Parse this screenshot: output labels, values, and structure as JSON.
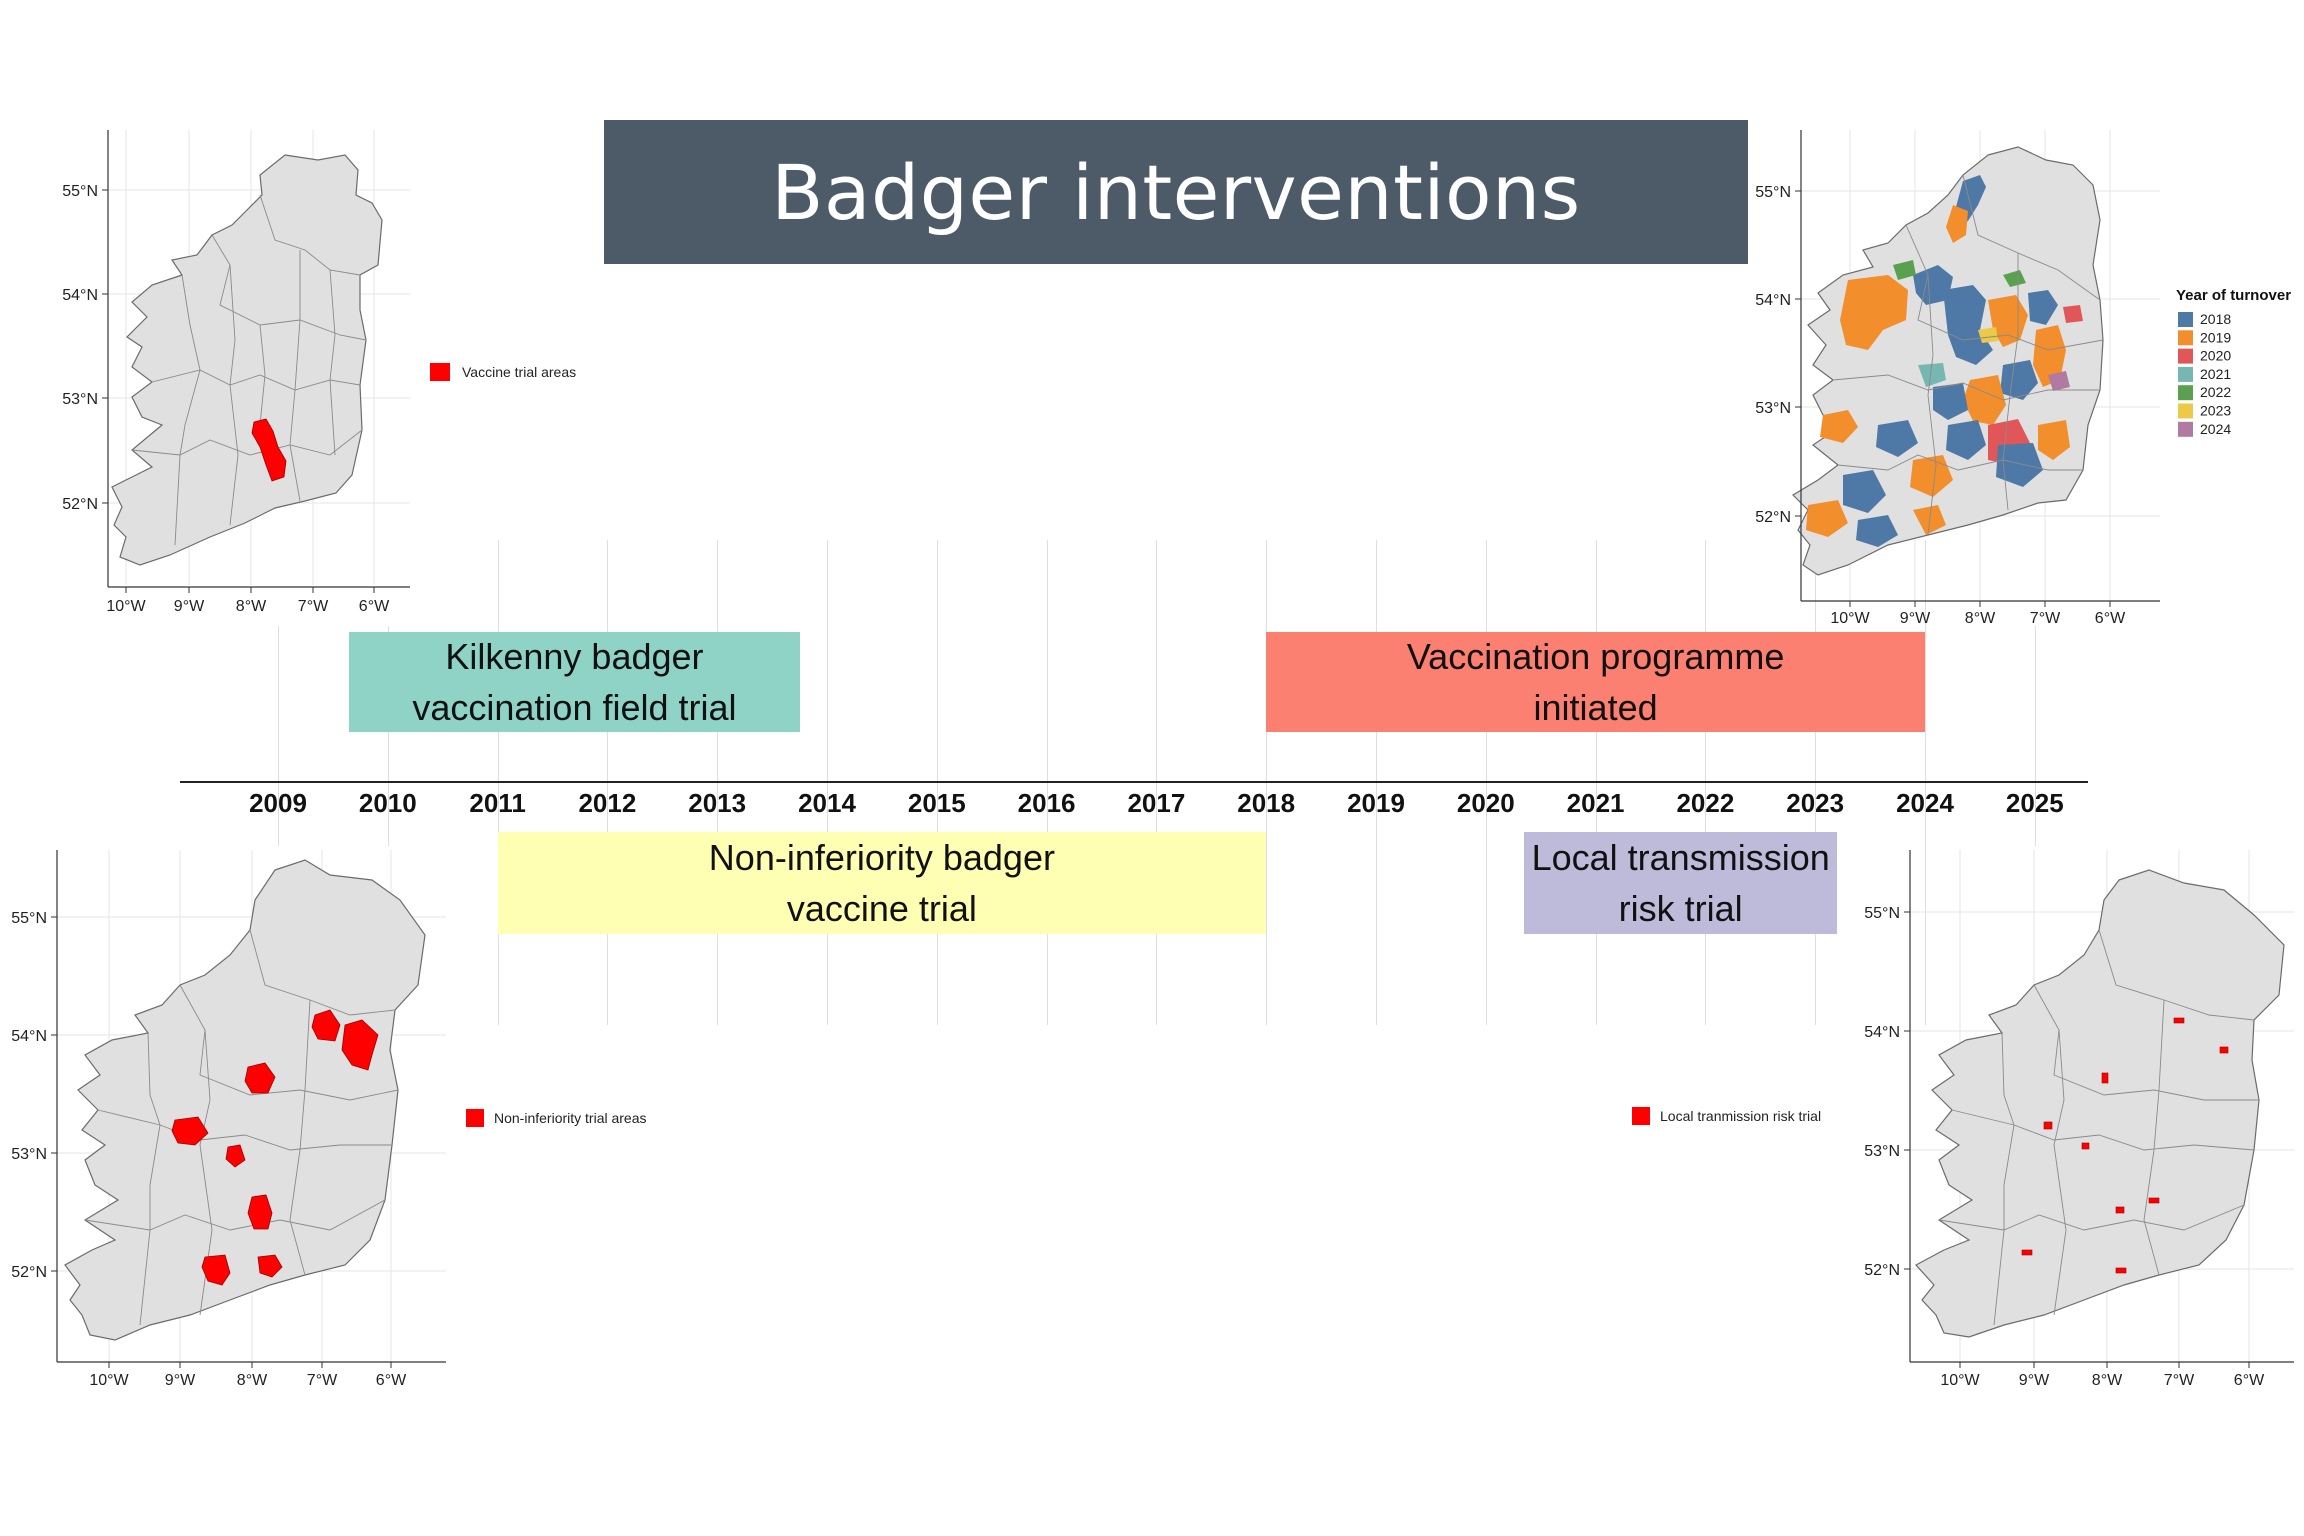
{
  "title": "Badger interventions",
  "timeline": {
    "years": [
      "2009",
      "2010",
      "2011",
      "2012",
      "2013",
      "2014",
      "2015",
      "2016",
      "2017",
      "2018",
      "2019",
      "2020",
      "2021",
      "2022",
      "2023",
      "2024",
      "2025"
    ],
    "events": [
      {
        "id": "kilkenny",
        "lines": [
          "Kilkenny badger",
          "vaccination field trial"
        ],
        "start": 2009.65,
        "end": 2013.75,
        "color": "#8fd3c7",
        "position": "above"
      },
      {
        "id": "programme",
        "lines": [
          "Vaccination programme",
          "initiated"
        ],
        "start": 2018.0,
        "end": 2024.0,
        "color": "#fb8072",
        "position": "above"
      },
      {
        "id": "noninferiority",
        "lines": [
          "Non-inferiority badger",
          "vaccine trial"
        ],
        "start": 2011.0,
        "end": 2018.0,
        "color": "#ffffb3",
        "position": "below"
      },
      {
        "id": "local",
        "lines": [
          "Local transmission",
          "risk trial"
        ],
        "start": 2020.35,
        "end": 2023.2,
        "color": "#bebada",
        "position": "below"
      }
    ]
  },
  "maps": {
    "vaccine": {
      "lat_labels": [
        "55°N",
        "54°N",
        "53°N",
        "52°N"
      ],
      "lon_labels": [
        "10°W",
        "9°W",
        "8°W",
        "7°W",
        "6°W"
      ],
      "legend_label": "Vaccine trial areas",
      "legend_color": "#ff0000"
    },
    "turnover": {
      "lat_labels": [
        "55°N",
        "54°N",
        "53°N",
        "52°N"
      ],
      "lon_labels": [
        "10°W",
        "9°W",
        "8°W",
        "7°W",
        "6°W"
      ],
      "legend_title": "Year of turnover",
      "legend_items": [
        {
          "label": "2018",
          "color": "#4e79a7"
        },
        {
          "label": "2019",
          "color": "#f28e2b"
        },
        {
          "label": "2020",
          "color": "#e15759"
        },
        {
          "label": "2021",
          "color": "#76b7b2"
        },
        {
          "label": "2022",
          "color": "#59a14f"
        },
        {
          "label": "2023",
          "color": "#edc948"
        },
        {
          "label": "2024",
          "color": "#b07aa1"
        }
      ]
    },
    "noninferiority": {
      "lat_labels": [
        "55°N",
        "54°N",
        "53°N",
        "52°N"
      ],
      "lon_labels": [
        "10°W",
        "9°W",
        "8°W",
        "7°W",
        "6°W"
      ],
      "legend_label": "Non-inferiority trial areas",
      "legend_color": "#ff0000"
    },
    "local": {
      "lat_labels": [
        "55°N",
        "54°N",
        "53°N",
        "52°N"
      ],
      "lon_labels": [
        "10°W",
        "9°W",
        "8°W",
        "7°W",
        "6°W"
      ],
      "legend_label": "Local tranmission risk trial",
      "legend_color": "#ff0000"
    }
  }
}
